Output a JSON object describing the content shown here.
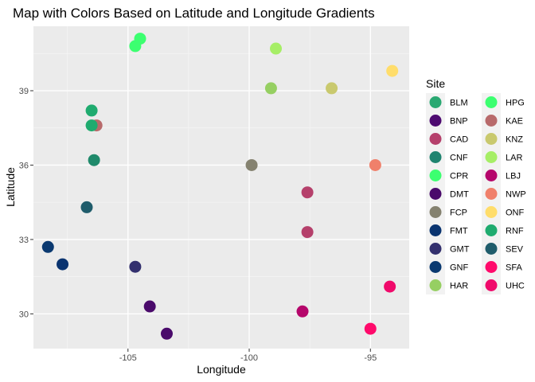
{
  "chart_data": {
    "type": "scatter",
    "title": "Map with Colors Based on Latitude and Longitude Gradients",
    "xlabel": "Longitude",
    "ylabel": "Latitude",
    "xlim": [
      -108.9,
      -93.4
    ],
    "ylim": [
      28.6,
      41.6
    ],
    "xticks": [
      -105,
      -100,
      -95
    ],
    "xtick_labels": [
      "-105",
      "-100",
      "-95"
    ],
    "yticks": [
      30,
      33,
      36,
      39
    ],
    "ytick_labels": [
      "30",
      "33",
      "36",
      "39"
    ],
    "grid": true,
    "legend": {
      "title": "Site",
      "placement": "right",
      "columns": 2
    },
    "points": [
      {
        "site": "BLM",
        "x": -106.5,
        "y": 38.2,
        "color": "#1fab6f"
      },
      {
        "site": "BNP",
        "x": -103.4,
        "y": 29.2,
        "color": "#4a0a6b"
      },
      {
        "site": "CAD",
        "x": -97.6,
        "y": 34.9,
        "color": "#b5406b"
      },
      {
        "site": "CNF",
        "x": -106.4,
        "y": 36.2,
        "color": "#1f8a6b"
      },
      {
        "site": "CPR",
        "x": -104.7,
        "y": 40.8,
        "color": "#3cff70"
      },
      {
        "site": "DMT",
        "x": -104.1,
        "y": 30.3,
        "color": "#4a0a6b"
      },
      {
        "site": "FCP",
        "x": -99.9,
        "y": 36.0,
        "color": "#858270"
      },
      {
        "site": "FMT",
        "x": -107.7,
        "y": 32.0,
        "color": "#0a3470"
      },
      {
        "site": "GMT",
        "x": -104.7,
        "y": 31.9,
        "color": "#33306e"
      },
      {
        "site": "GNF",
        "x": -108.3,
        "y": 32.7,
        "color": "#0a3970"
      },
      {
        "site": "HAR",
        "x": -99.1,
        "y": 39.1,
        "color": "#96cf62"
      },
      {
        "site": "HPG",
        "x": -104.5,
        "y": 41.1,
        "color": "#3cff70"
      },
      {
        "site": "KAE",
        "x": -106.3,
        "y": 37.6,
        "color": "#b86a6b"
      },
      {
        "site": "KNZ",
        "x": -96.6,
        "y": 39.1,
        "color": "#c9c96e"
      },
      {
        "site": "LAR",
        "x": -98.9,
        "y": 40.7,
        "color": "#a6ee66"
      },
      {
        "site": "LBJ",
        "x": -97.8,
        "y": 30.1,
        "color": "#b5066b"
      },
      {
        "site": "NWP",
        "x": -94.8,
        "y": 36.0,
        "color": "#f0806b"
      },
      {
        "site": "ONF",
        "x": -94.1,
        "y": 39.8,
        "color": "#ffdd6b"
      },
      {
        "site": "RNF",
        "x": -106.5,
        "y": 37.6,
        "color": "#1fab6f"
      },
      {
        "site": "SEV",
        "x": -106.7,
        "y": 34.3,
        "color": "#1f5c6b"
      },
      {
        "site": "SFA",
        "x": -95.0,
        "y": 29.4,
        "color": "#ff0a6b"
      },
      {
        "site": "UHC",
        "x": -94.2,
        "y": 31.1,
        "color": "#f00a6b"
      },
      {
        "site": "CAD",
        "x": -97.6,
        "y": 33.3,
        "color": "#b5406b"
      }
    ],
    "legend_entries": [
      {
        "site": "BLM",
        "color": "#2aa872"
      },
      {
        "site": "BNP",
        "color": "#4d0a70"
      },
      {
        "site": "CAD",
        "color": "#b5406b"
      },
      {
        "site": "CNF",
        "color": "#1f8470"
      },
      {
        "site": "CPR",
        "color": "#3cff70"
      },
      {
        "site": "DMT",
        "color": "#4a0a6b"
      },
      {
        "site": "FCP",
        "color": "#858270"
      },
      {
        "site": "FMT",
        "color": "#0a3470"
      },
      {
        "site": "GMT",
        "color": "#33306e"
      },
      {
        "site": "GNF",
        "color": "#0a3970"
      },
      {
        "site": "HAR",
        "color": "#96cf62"
      },
      {
        "site": "HPG",
        "color": "#3cff70"
      },
      {
        "site": "KAE",
        "color": "#b86a6b"
      },
      {
        "site": "KNZ",
        "color": "#c9c96e"
      },
      {
        "site": "LAR",
        "color": "#a6ee66"
      },
      {
        "site": "LBJ",
        "color": "#b5066b"
      },
      {
        "site": "NWP",
        "color": "#f0806b"
      },
      {
        "site": "ONF",
        "color": "#ffdd6b"
      },
      {
        "site": "RNF",
        "color": "#1fab6f"
      },
      {
        "site": "SEV",
        "color": "#1f5c6b"
      },
      {
        "site": "SFA",
        "color": "#ff0a6b"
      },
      {
        "site": "UHC",
        "color": "#f00a6b"
      }
    ]
  }
}
